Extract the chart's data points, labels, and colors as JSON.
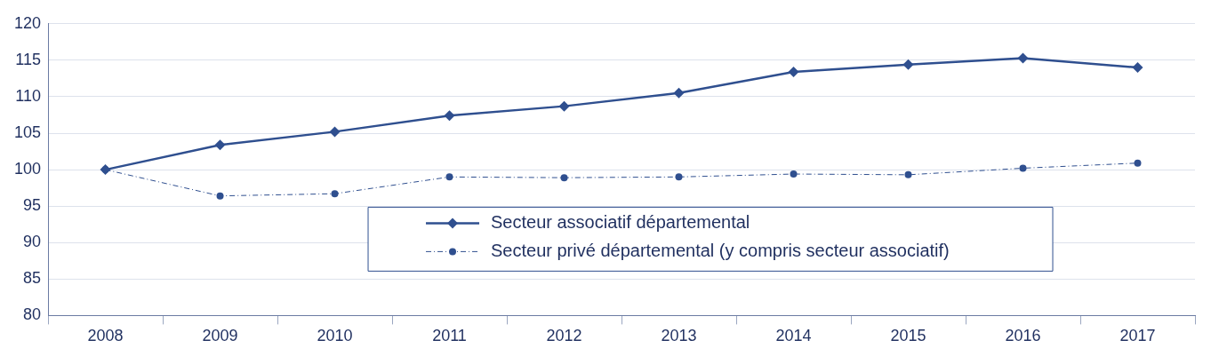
{
  "chart_data": {
    "type": "line",
    "categories": [
      "2008",
      "2009",
      "2010",
      "2011",
      "2012",
      "2013",
      "2014",
      "2015",
      "2016",
      "2017"
    ],
    "series": [
      {
        "name": "Secteur associatif départemental",
        "color": "#2f4f8f",
        "marker": "diamond",
        "line_style": "solid",
        "values": [
          100,
          103.4,
          105.2,
          107.4,
          108.7,
          110.5,
          113.4,
          114.4,
          115.3,
          114.0
        ]
      },
      {
        "name": "Secteur privé départemental (y compris secteur associatif)",
        "color": "#2f4f8f",
        "marker": "circle",
        "line_style": "dashed",
        "values": [
          100,
          96.4,
          96.7,
          99.0,
          98.9,
          99.0,
          99.4,
          99.3,
          100.2,
          100.9
        ]
      }
    ],
    "ylim": [
      80,
      120
    ],
    "yticks": [
      80,
      85,
      90,
      95,
      100,
      105,
      110,
      115,
      120
    ],
    "grid": "y",
    "legend": "bottom"
  }
}
